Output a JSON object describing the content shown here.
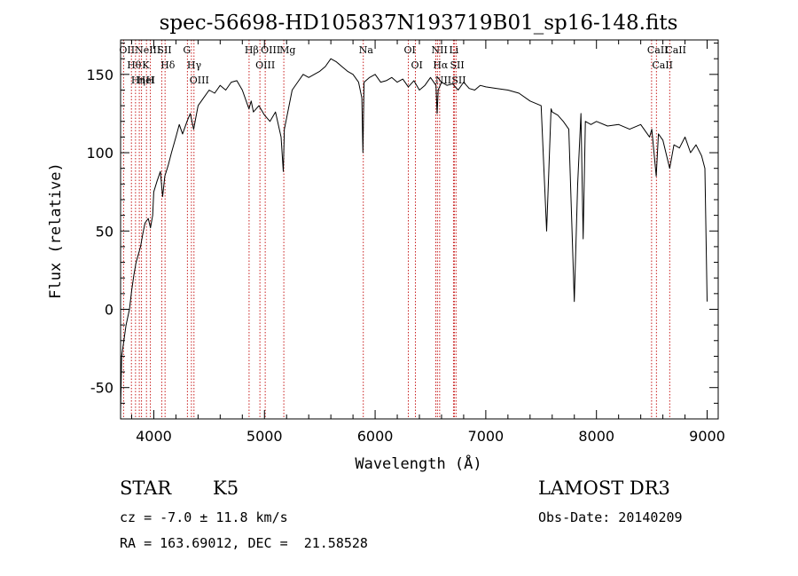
{
  "header": {
    "title": "spec-56698-HD105837N193719B01_sp16-148.fits"
  },
  "chart_data": {
    "type": "line",
    "xlabel": "Wavelength (Å)",
    "ylabel": "Flux (relative)",
    "xlim": [
      3700,
      9100
    ],
    "ylim": [
      -70,
      172
    ],
    "x_ticks": [
      4000,
      5000,
      6000,
      7000,
      8000,
      9000
    ],
    "y_ticks": [
      -50,
      0,
      50,
      100,
      150
    ],
    "grid": false,
    "series": [
      {
        "color": "#000000",
        "x": [
          3700,
          3710,
          3730,
          3750,
          3780,
          3800,
          3820,
          3840,
          3860,
          3880,
          3900,
          3920,
          3950,
          3970,
          3990,
          4000,
          4030,
          4060,
          4080,
          4100,
          4130,
          4160,
          4200,
          4230,
          4260,
          4300,
          4330,
          4360,
          4400,
          4450,
          4500,
          4550,
          4600,
          4650,
          4700,
          4750,
          4800,
          4850,
          4860,
          4880,
          4900,
          4950,
          5000,
          5050,
          5100,
          5150,
          5170,
          5180,
          5200,
          5250,
          5300,
          5350,
          5400,
          5450,
          5500,
          5550,
          5600,
          5650,
          5700,
          5750,
          5800,
          5850,
          5880,
          5890,
          5900,
          5950,
          6000,
          6050,
          6100,
          6150,
          6200,
          6250,
          6300,
          6350,
          6400,
          6450,
          6500,
          6550,
          6560,
          6570,
          6600,
          6650,
          6700,
          6750,
          6800,
          6850,
          6900,
          6950,
          7000,
          7100,
          7200,
          7300,
          7400,
          7500,
          7550,
          7590,
          7600,
          7650,
          7700,
          7750,
          7800,
          7830,
          7860,
          7880,
          7900,
          7950,
          8000,
          8100,
          8200,
          8300,
          8400,
          8480,
          8500,
          8540,
          8560,
          8600,
          8662,
          8700,
          8750,
          8800,
          8850,
          8900,
          8950,
          8980,
          9000
        ],
        "values": [
          -65,
          -30,
          -20,
          -10,
          0,
          12,
          22,
          30,
          35,
          40,
          48,
          55,
          58,
          52,
          60,
          75,
          82,
          88,
          72,
          85,
          92,
          100,
          110,
          118,
          112,
          120,
          125,
          115,
          130,
          135,
          140,
          138,
          143,
          140,
          145,
          146,
          140,
          130,
          128,
          133,
          126,
          130,
          124,
          120,
          126,
          110,
          88,
          115,
          122,
          140,
          145,
          150,
          148,
          150,
          152,
          155,
          160,
          158,
          155,
          152,
          150,
          145,
          135,
          100,
          145,
          148,
          150,
          145,
          146,
          148,
          145,
          147,
          142,
          146,
          140,
          143,
          148,
          143,
          125,
          140,
          145,
          143,
          144,
          140,
          145,
          141,
          140,
          143,
          142,
          141,
          140,
          138,
          133,
          130,
          50,
          128,
          126,
          124,
          120,
          115,
          5,
          80,
          125,
          45,
          120,
          118,
          120,
          117,
          118,
          115,
          118,
          110,
          115,
          85,
          112,
          108,
          90,
          105,
          103,
          110,
          100,
          105,
          98,
          90,
          5
        ]
      }
    ],
    "lines": [
      {
        "x": 3727,
        "label": "OII"
      },
      {
        "x": 3798,
        "label": "Hθ"
      },
      {
        "x": 3835,
        "label": "Hη"
      },
      {
        "x": 3869,
        "label": "NeIII"
      },
      {
        "x": 3889,
        "label": "HeI"
      },
      {
        "x": 3934,
        "label": "K"
      },
      {
        "x": 3969,
        "label": "H"
      },
      {
        "x": 4072,
        "label": "SII"
      },
      {
        "x": 4102,
        "label": "Hδ"
      },
      {
        "x": 4304,
        "label": "G"
      },
      {
        "x": 4340,
        "label": "Hγ"
      },
      {
        "x": 4363,
        "label": "OIII"
      },
      {
        "x": 4861,
        "label": "Hβ"
      },
      {
        "x": 4959,
        "label": "OIII"
      },
      {
        "x": 5007,
        "label": "OIII"
      },
      {
        "x": 5175,
        "label": "Mg"
      },
      {
        "x": 5893,
        "label": "Na"
      },
      {
        "x": 6300,
        "label": "OI"
      },
      {
        "x": 6364,
        "label": "OI"
      },
      {
        "x": 6548,
        "label": "NII"
      },
      {
        "x": 6563,
        "label": "Hα"
      },
      {
        "x": 6583,
        "label": "NII"
      },
      {
        "x": 6708,
        "label": "Li"
      },
      {
        "x": 6716,
        "label": "SII"
      },
      {
        "x": 6731,
        "label": "SII"
      },
      {
        "x": 8498,
        "label": "CaII"
      },
      {
        "x": 8542,
        "label": "CaII"
      },
      {
        "x": 8662,
        "label": "CaII"
      }
    ]
  },
  "info": {
    "object_class": "STAR",
    "subclass": "K5",
    "survey": "LAMOST DR3",
    "redshift": "cz = -7.0 ± 11.8 km/s",
    "obs_date": "Obs-Date: 20140209",
    "coords": "RA = 163.69012, DEC =  21.58528"
  }
}
